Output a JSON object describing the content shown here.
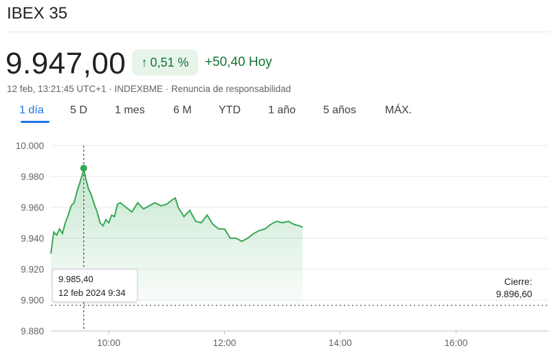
{
  "header": {
    "title": "IBEX 35",
    "price": "9.947,00",
    "change_pct": "0,51 %",
    "change_abs": "+50,40 Hoy",
    "meta": "12 feb, 13:21:45 UTC+1 · INDEXBME · Renuncia de responsabilidad"
  },
  "tabs": [
    {
      "label": "1 día",
      "active": true
    },
    {
      "label": "5 D",
      "active": false
    },
    {
      "label": "1 mes",
      "active": false
    },
    {
      "label": "6 M",
      "active": false
    },
    {
      "label": "YTD",
      "active": false
    },
    {
      "label": "1 año",
      "active": false
    },
    {
      "label": "5 años",
      "active": false
    },
    {
      "label": "MÁX.",
      "active": false
    }
  ],
  "tooltip": {
    "value": "9.985,40",
    "date": "12 feb 2024 9:34"
  },
  "close": {
    "label": "Cierre:",
    "value": "9.896,60"
  },
  "colors": {
    "line": "#34a853",
    "accent": "#1a73e8",
    "positive": "#137333"
  },
  "chart_data": {
    "type": "line",
    "x_unit": "time of day (hours)",
    "xlim": [
      9.0,
      17.6
    ],
    "ylim": [
      9880,
      10000
    ],
    "yticks": [
      10000,
      9980,
      9960,
      9940,
      9920,
      9900,
      9880
    ],
    "ytick_labels": [
      "10.000",
      "9.980",
      "9.960",
      "9.940",
      "9.920",
      "9.900",
      "9.880"
    ],
    "xticks": [
      10,
      12,
      14,
      16
    ],
    "xtick_labels": [
      "10:00",
      "12:00",
      "14:00",
      "16:00"
    ],
    "previous_close": 9896.6,
    "highlight": {
      "x": 9.567,
      "y": 9985.4
    },
    "grid": true,
    "x": [
      9.0,
      9.05,
      9.1,
      9.15,
      9.2,
      9.25,
      9.3,
      9.35,
      9.4,
      9.45,
      9.5,
      9.55,
      9.567,
      9.6,
      9.65,
      9.7,
      9.75,
      9.8,
      9.85,
      9.9,
      9.95,
      10.0,
      10.05,
      10.1,
      10.15,
      10.2,
      10.3,
      10.4,
      10.5,
      10.6,
      10.7,
      10.8,
      10.9,
      11.0,
      11.1,
      11.15,
      11.2,
      11.3,
      11.4,
      11.5,
      11.6,
      11.7,
      11.8,
      11.9,
      12.0,
      12.1,
      12.2,
      12.3,
      12.4,
      12.5,
      12.6,
      12.7,
      12.8,
      12.9,
      13.0,
      13.1,
      13.2,
      13.3,
      13.35
    ],
    "y": [
      9930,
      9944,
      9942,
      9946,
      9943,
      9950,
      9955,
      9961,
      9963,
      9970,
      9976,
      9982,
      9985.4,
      9979,
      9972,
      9968,
      9962,
      9957,
      9950,
      9948,
      9952,
      9950,
      9955,
      9954,
      9962,
      9963,
      9960,
      9957,
      9963,
      9959,
      9961,
      9963,
      9961,
      9962,
      9965,
      9966,
      9960,
      9954,
      9958,
      9951,
      9950,
      9955,
      9949,
      9946,
      9946,
      9940,
      9940,
      9938,
      9940,
      9943,
      9945,
      9946,
      9949,
      9951,
      9950,
      9951,
      9949,
      9948,
      9947
    ]
  }
}
